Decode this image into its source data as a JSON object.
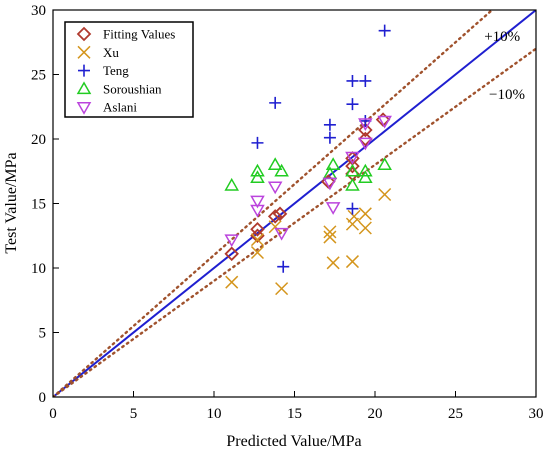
{
  "chart_data": {
    "type": "scatter",
    "xlabel": "Predicted Value/MPa",
    "ylabel": "Test Value/MPa",
    "xlim": [
      0,
      30
    ],
    "ylim": [
      0,
      30
    ],
    "xticks": [
      0,
      5,
      10,
      15,
      20,
      25,
      30
    ],
    "yticks": [
      0,
      5,
      10,
      15,
      20,
      25,
      30
    ],
    "grid": false,
    "legend_position": "top-left",
    "reference_lines": [
      {
        "name": "equality",
        "slope": 1.0,
        "style": "solid",
        "color": "#1f1fd0"
      },
      {
        "name": "+10%",
        "slope": 1.1,
        "style": "dotted",
        "color": "#a0522d"
      },
      {
        "name": "-10%",
        "slope": 0.9,
        "style": "dotted",
        "color": "#a0522d"
      }
    ],
    "annotations": [
      {
        "text": "+10%",
        "x": 27.9,
        "y": 27.6
      },
      {
        "text": "−10%",
        "x": 28.2,
        "y": 23.1
      }
    ],
    "series": [
      {
        "name": "Fitting Values",
        "marker": "diamond",
        "color": "#b03a2e",
        "points": [
          [
            11.1,
            11.1
          ],
          [
            12.7,
            13.0
          ],
          [
            12.7,
            12.5
          ],
          [
            13.8,
            14.0
          ],
          [
            14.1,
            14.2
          ],
          [
            17.1,
            16.7
          ],
          [
            18.6,
            18.5
          ],
          [
            18.6,
            17.9
          ],
          [
            18.6,
            17.3
          ],
          [
            19.4,
            20.7
          ],
          [
            19.4,
            20.0
          ],
          [
            20.5,
            21.5
          ]
        ]
      },
      {
        "name": "Xu",
        "marker": "x",
        "color": "#d4951c",
        "points": [
          [
            11.1,
            8.9
          ],
          [
            12.7,
            11.2
          ],
          [
            12.7,
            12.2
          ],
          [
            13.8,
            13.2
          ],
          [
            14.2,
            8.4
          ],
          [
            17.2,
            12.8
          ],
          [
            17.2,
            12.4
          ],
          [
            17.4,
            10.4
          ],
          [
            18.6,
            13.4
          ],
          [
            18.7,
            14.0
          ],
          [
            18.6,
            10.5
          ],
          [
            19.4,
            14.2
          ],
          [
            19.4,
            13.1
          ],
          [
            20.6,
            15.7
          ]
        ]
      },
      {
        "name": "Teng",
        "marker": "plus",
        "color": "#1f1fd0",
        "points": [
          [
            12.7,
            19.7
          ],
          [
            13.8,
            22.8
          ],
          [
            14.3,
            10.1
          ],
          [
            17.2,
            21.1
          ],
          [
            17.2,
            20.1
          ],
          [
            18.6,
            24.5
          ],
          [
            18.6,
            22.7
          ],
          [
            18.6,
            14.6
          ],
          [
            19.4,
            24.5
          ],
          [
            19.4,
            21.4
          ],
          [
            20.6,
            28.4
          ]
        ]
      },
      {
        "name": "Soroushian",
        "marker": "triangle-up",
        "color": "#22cc22",
        "points": [
          [
            11.1,
            16.4
          ],
          [
            12.7,
            17.5
          ],
          [
            12.7,
            17.0
          ],
          [
            13.8,
            18.0
          ],
          [
            14.2,
            17.5
          ],
          [
            17.2,
            17.3
          ],
          [
            17.4,
            18.0
          ],
          [
            18.6,
            16.4
          ],
          [
            18.6,
            17.5
          ],
          [
            19.4,
            17.5
          ],
          [
            19.4,
            17.0
          ],
          [
            20.6,
            18.0
          ]
        ]
      },
      {
        "name": "Aslani",
        "marker": "triangle-down",
        "color": "#bb44dd",
        "points": [
          [
            11.1,
            12.2
          ],
          [
            12.7,
            15.2
          ],
          [
            12.7,
            14.5
          ],
          [
            13.8,
            16.3
          ],
          [
            14.2,
            12.7
          ],
          [
            17.2,
            16.6
          ],
          [
            17.4,
            14.7
          ],
          [
            18.6,
            18.6
          ],
          [
            19.4,
            19.7
          ],
          [
            19.4,
            21.2
          ],
          [
            20.6,
            21.4
          ]
        ]
      }
    ]
  }
}
